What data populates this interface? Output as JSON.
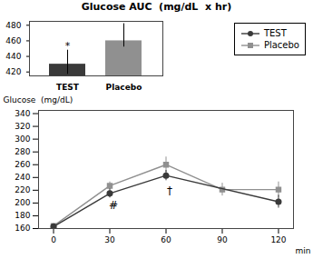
{
  "chart_data": [
    {
      "type": "line",
      "ylabel": "Glucose  (mg/dL)",
      "xlabel": "min",
      "xlim": [
        -8,
        128
      ],
      "ylim": [
        160,
        345
      ],
      "xticks": [
        0,
        30,
        60,
        90,
        120
      ],
      "yticks": [
        160,
        180,
        200,
        220,
        240,
        260,
        280,
        300,
        320,
        340
      ],
      "legend": "upper right",
      "series": [
        {
          "name": "TEST",
          "color": "#3a3a3a",
          "marker": "circle",
          "x": [
            0,
            30,
            60,
            120
          ],
          "values": [
            163,
            215,
            243,
            202
          ],
          "errors": [
            3,
            7,
            8,
            10
          ]
        },
        {
          "name": "Placebo",
          "color": "#909090",
          "marker": "square",
          "x": [
            0,
            30,
            60,
            90,
            120
          ],
          "values": [
            164,
            227,
            260,
            221,
            221
          ],
          "errors": [
            3,
            6,
            12,
            10,
            12
          ]
        }
      ],
      "annotations": [
        {
          "text": "#",
          "x": 30,
          "y": 205
        },
        {
          "text": "†",
          "x": 60,
          "y": 228
        }
      ]
    },
    {
      "type": "bar",
      "title": "Glucose AUC  (mg/dL  x hr)",
      "categories": [
        "TEST",
        "Placebo"
      ],
      "values": [
        430,
        460
      ],
      "errors_low": [
        13,
        8
      ],
      "errors_high": [
        18,
        22
      ],
      "colors": [
        "#3a3a3a",
        "#909090"
      ],
      "ylim": [
        415,
        485
      ],
      "yticks": [
        420,
        440,
        460,
        480
      ],
      "annotations": [
        {
          "text": "*",
          "x": "TEST"
        }
      ]
    }
  ]
}
